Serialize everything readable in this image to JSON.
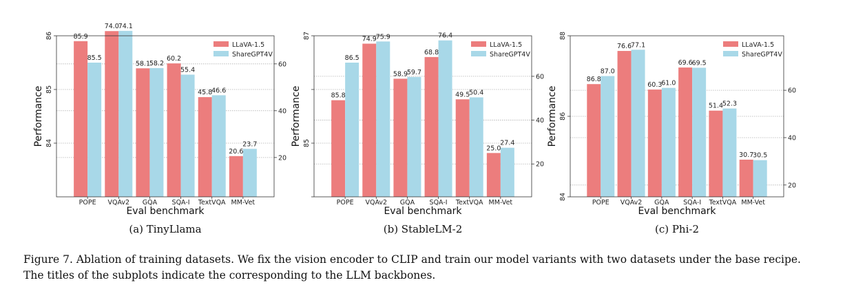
{
  "legend_labels": [
    "LLaVA-1.5",
    "ShareGPT4V"
  ],
  "colors": {
    "llava": "#ec7d7d",
    "sharegpt": "#a8d8e8",
    "grid": "#b0b0b0",
    "axis": "#333333"
  },
  "caption": "Figure 7. Ablation of training datasets. We fix the vision encoder to CLIP and train our model variants with two datasets under the base recipe. The titles of the subplots indicate the corresponding to the LLM backbones.",
  "chart_data": [
    {
      "type": "bar",
      "subtitle": "(a) TinyLlama",
      "xlabel": "Eval benchmark",
      "ylabel": "Performance",
      "categories": [
        "POPE",
        "VQAv2",
        "GQA",
        "SQA-I",
        "TextVQA",
        "MM-Vet"
      ],
      "series": [
        {
          "name": "LLaVA-1.5",
          "values": [
            85.9,
            74.0,
            58.1,
            60.2,
            45.8,
            20.6
          ]
        },
        {
          "name": "ShareGPT4V",
          "values": [
            85.5,
            74.1,
            58.2,
            55.4,
            46.6,
            23.7
          ]
        }
      ],
      "labels": [
        [
          "85.9",
          "74.0",
          "58.1",
          "60.2",
          "45.8",
          "20.6"
        ],
        [
          "85.5",
          "74.1",
          "58.2",
          "55.4",
          "46.6",
          "23.7"
        ]
      ],
      "left_axis": {
        "ylim": [
          83.0,
          86.0
        ],
        "ticks": [
          84,
          85,
          86
        ],
        "tick_labels": [
          "84",
          "85",
          "86"
        ]
      },
      "right_axis": {
        "ylim": [
          3.2,
          72.0
        ],
        "ticks": [
          20,
          40,
          60
        ],
        "tick_labels": [
          "20",
          "40",
          "60"
        ]
      }
    },
    {
      "type": "bar",
      "subtitle": "(b) StableLM-2",
      "xlabel": "Eval benchmark",
      "ylabel": "Performance",
      "categories": [
        "POPE",
        "VQAv2",
        "GQA",
        "SQA-I",
        "TextVQA",
        "MM-Vet"
      ],
      "series": [
        {
          "name": "LLaVA-1.5",
          "values": [
            85.8,
            74.9,
            58.9,
            68.8,
            49.5,
            25.0
          ]
        },
        {
          "name": "ShareGPT4V",
          "values": [
            86.5,
            75.9,
            59.7,
            76.4,
            50.4,
            27.4
          ]
        }
      ],
      "labels": [
        [
          "85.8",
          "74.9",
          "58.9",
          "68.8",
          "49.5",
          "25.0"
        ],
        [
          "86.5",
          "75.9",
          "59.7",
          "76.4",
          "50.4",
          "27.4"
        ]
      ],
      "left_axis": {
        "ylim": [
          84.0,
          87.0
        ],
        "ticks": [
          84,
          85,
          86,
          87
        ],
        "tick_labels": [
          "",
          "85",
          "",
          "87"
        ]
      },
      "right_axis": {
        "ylim": [
          5.0,
          78.5
        ],
        "ticks": [
          20,
          40,
          60
        ],
        "tick_labels": [
          "20",
          "40",
          "60"
        ]
      }
    },
    {
      "type": "bar",
      "subtitle": "(c) Phi-2",
      "xlabel": "Eval benchmark",
      "ylabel": "Performance",
      "categories": [
        "POPE",
        "VQAv2",
        "GQA",
        "SQA-I",
        "TextVQA",
        "MM-Vet"
      ],
      "series": [
        {
          "name": "LLaVA-1.5",
          "values": [
            86.8,
            76.6,
            60.3,
            69.6,
            51.4,
            30.7
          ]
        },
        {
          "name": "ShareGPT4V",
          "values": [
            87.0,
            77.1,
            61.0,
            69.5,
            52.3,
            30.5
          ]
        }
      ],
      "labels": [
        [
          "86.8",
          "76.6",
          "60.3",
          "69.6",
          "51.4",
          "30.7"
        ],
        [
          "87.0",
          "77.1",
          "61.0",
          "69.5",
          "52.3",
          "30.5"
        ]
      ],
      "left_axis": {
        "ylim": [
          84.0,
          88.0
        ],
        "ticks": [
          84,
          86,
          88
        ],
        "tick_labels": [
          "84",
          "86",
          "88"
        ]
      },
      "right_axis": {
        "ylim": [
          15.0,
          83.0
        ],
        "ticks": [
          20,
          40,
          60
        ],
        "tick_labels": [
          "20",
          "40",
          "60"
        ]
      }
    }
  ]
}
